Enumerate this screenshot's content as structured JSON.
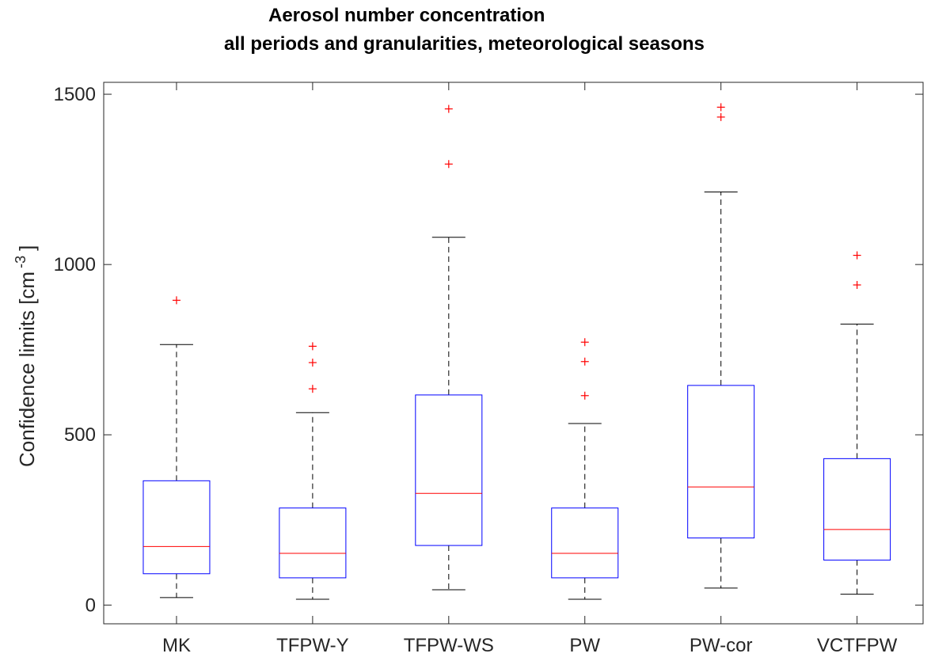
{
  "chart_data": {
    "type": "boxplot",
    "title": [
      "Aerosol number concentration",
      "all periods and granularities, meteorological seasons"
    ],
    "ylabel": "Confidence limits [cm",
    "ylabel_superscript": "-3",
    "ylabel_close": "]",
    "ylim": [
      -55,
      1535
    ],
    "yticks": [
      0,
      500,
      1000,
      1500
    ],
    "ytick_labels": [
      "0",
      "500",
      "1000",
      "1500"
    ],
    "grid": false,
    "colors": {
      "box": "#0000ff",
      "median": "#ff0000",
      "whisker": "#000000",
      "outlier": "#ff0000",
      "axes": "#262626"
    },
    "categories": [
      "MK",
      "TFPW-Y",
      "TFPW-WS",
      "PW",
      "PW-cor",
      "VCTFPW"
    ],
    "boxes": [
      {
        "whisker_low": 22,
        "q1": 92,
        "median": 172,
        "q3": 365,
        "whisker_high": 765,
        "outliers": [
          895
        ]
      },
      {
        "whisker_low": 17,
        "q1": 80,
        "median": 152,
        "q3": 285,
        "whisker_high": 565,
        "outliers": [
          635,
          712,
          760
        ]
      },
      {
        "whisker_low": 45,
        "q1": 175,
        "median": 328,
        "q3": 617,
        "whisker_high": 1080,
        "outliers": [
          1295,
          1457
        ]
      },
      {
        "whisker_low": 17,
        "q1": 80,
        "median": 152,
        "q3": 285,
        "whisker_high": 533,
        "outliers": [
          615,
          715,
          772
        ]
      },
      {
        "whisker_low": 50,
        "q1": 197,
        "median": 347,
        "q3": 645,
        "whisker_high": 1213,
        "outliers": [
          1433,
          1462
        ]
      },
      {
        "whisker_low": 32,
        "q1": 132,
        "median": 222,
        "q3": 430,
        "whisker_high": 825,
        "outliers": [
          940,
          1027
        ]
      }
    ]
  }
}
